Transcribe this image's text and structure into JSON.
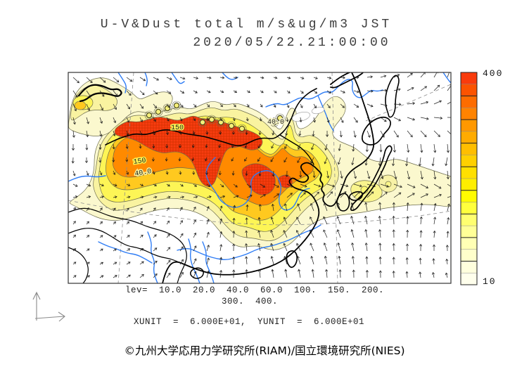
{
  "header": {
    "title_line1": "U-V&Dust total m/s&ug/m3 JST",
    "title_line2": "2020/05/22.21:00:00"
  },
  "chart_data": {
    "type": "heatmap",
    "subtype": "filled-contour-map-with-wind-vectors",
    "title": "U-V&Dust total m/s&ug/m3 JST",
    "timestamp_jst": "2020/05/22.21:00:00",
    "description": "Wind vectors (U,V in m/s) and total dust concentration (ug/m3) over East Asia",
    "contour_levels": [
      10.0,
      20.0,
      40.0,
      60.0,
      100.0,
      150.0,
      200.0,
      300.0,
      400.0
    ],
    "levels_line1": "lev=  10.0  20.0  40.0  60.0  100.  150.  200.",
    "levels_line2": "300.  400.",
    "units_line": "XUNIT  =  6.000E+01,  YUNIT  =  6.000E+01",
    "colorbar": {
      "max_label": "400",
      "min_label": "10",
      "colors_top_to_bottom": [
        "#f93b0c",
        "#fb5300",
        "#fd6c00",
        "#ff8300",
        "#ff9800",
        "#ffab00",
        "#ffbe00",
        "#ffd000",
        "#ffe000",
        "#ffee00",
        "#fffb00",
        "#ffff3d",
        "#ffff70",
        "#ffff97",
        "#ffffb5",
        "#ffffcb",
        "#ffffdd",
        "#ffffec"
      ]
    },
    "fill_colors": {
      "level10_pale": "#fbf8ce",
      "level40_paleyellow": "#f9f3a0",
      "level60_yellow": "#fdf556",
      "level100_gold": "#ffc91f",
      "level200_orange": "#ff8a00",
      "level400_red": "#f93c10"
    },
    "contour_labels": [
      {
        "text": "150"
      },
      {
        "text": "40.0"
      },
      {
        "text": "150"
      },
      {
        "text": "40.0"
      }
    ],
    "wind": {
      "grid_spacing": 19,
      "arrow_color": "#151515"
    },
    "map_features": [
      "coastlines-east-asia",
      "country-borders",
      "rivers-blue",
      "graticule-dashed",
      "lakes"
    ]
  },
  "footer": {
    "credit": "©九州大学応用力学研究所(RIAM)/国立環境研究所(NIES)"
  }
}
